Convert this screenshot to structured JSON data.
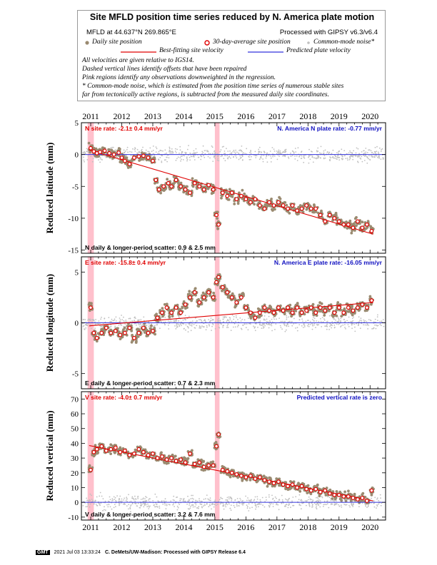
{
  "legend": {
    "title": "Site MFLD position time series reduced by N. America plate motion",
    "site_coords": "MFLD at 44.637°N 269.865°E",
    "processed": "Processed with GIPSY v6.3/v6.4",
    "daily": "Daily site position",
    "avg30": "30-day-average site position",
    "cmn": "Common-mode noise*",
    "best_fit": "Best-fitting site velocity",
    "predicted": "Predicted plate velocity",
    "note1": "All velocities are given relative to IGS14.",
    "note2": "Dashed vertical lines identify offsets that have been repaired",
    "note3": "Pink regions identify any observations downweighted in the regression.",
    "note4": "* Common-mode noise, which is estimated from the position time series of numerous stable sites",
    "note5": "far from tectonically active regions, is subtracted from the measured daily site coordinates."
  },
  "colors": {
    "daily": "#9a8a70",
    "cmn": "#c0c0c0",
    "fit": "#e00000",
    "plate": "#3333dd",
    "pink": "#ffc0cc",
    "rate_red": "#e00000",
    "rate_blue": "#1010c0"
  },
  "footer": {
    "logo": "GMT",
    "timestamp": "2021 Jul 03 13:33:24",
    "credit": "C. DeMets/UW-Madison: Processed with GIPSY Release 6.4"
  },
  "chart_data": [
    {
      "type": "scatter",
      "component": "N",
      "ylabel": "Reduced latitude (mm)",
      "ylim": [
        -15.5,
        5
      ],
      "yticks": [
        5,
        0,
        -5,
        -10,
        -15
      ],
      "xlim": [
        2010.7,
        2020.5
      ],
      "xticks": [
        2011,
        2012,
        2013,
        2014,
        2015,
        2016,
        2017,
        2018,
        2019,
        2020
      ],
      "site_rate": "N site rate:  -2.1± 0.4 mm/yr",
      "plate_rate": "N. America N plate rate:  -0.77 mm/yr",
      "scatter_label": "N daily & longer-period scatter:   0.9 &   2.5 mm",
      "pink_regions": [
        [
          2010.9,
          2011.1
        ],
        [
          2015.0,
          2015.15
        ]
      ],
      "fit_line": {
        "x": [
          2010.95,
          2020.1
        ],
        "y": [
          0.7,
          -12.5
        ]
      },
      "plate_line": 0,
      "monthly": [
        {
          "x": 2011.0,
          "y": 1.0
        },
        {
          "x": 2011.1,
          "y": 0.5
        },
        {
          "x": 2011.2,
          "y": 0.2
        },
        {
          "x": 2011.3,
          "y": 0.4
        },
        {
          "x": 2011.45,
          "y": 0.6
        },
        {
          "x": 2011.6,
          "y": 0.2
        },
        {
          "x": 2011.75,
          "y": 0.0
        },
        {
          "x": 2011.9,
          "y": 0.3
        },
        {
          "x": 2012.0,
          "y": -0.5
        },
        {
          "x": 2012.1,
          "y": -1.0
        },
        {
          "x": 2012.25,
          "y": -1.5
        },
        {
          "x": 2012.4,
          "y": -0.5
        },
        {
          "x": 2012.55,
          "y": -0.3
        },
        {
          "x": 2012.7,
          "y": -0.2
        },
        {
          "x": 2012.85,
          "y": -0.5
        },
        {
          "x": 2013.0,
          "y": -1.0
        },
        {
          "x": 2013.1,
          "y": -4.0
        },
        {
          "x": 2013.2,
          "y": -5.5
        },
        {
          "x": 2013.35,
          "y": -5.0
        },
        {
          "x": 2013.5,
          "y": -4.5
        },
        {
          "x": 2013.6,
          "y": -5.0
        },
        {
          "x": 2013.75,
          "y": -4.0
        },
        {
          "x": 2013.9,
          "y": -5.0
        },
        {
          "x": 2014.05,
          "y": -5.5
        },
        {
          "x": 2014.2,
          "y": -6.0
        },
        {
          "x": 2014.35,
          "y": -4.5
        },
        {
          "x": 2014.5,
          "y": -5.0
        },
        {
          "x": 2014.65,
          "y": -5.5
        },
        {
          "x": 2014.8,
          "y": -4.8
        },
        {
          "x": 2014.95,
          "y": -5.5
        },
        {
          "x": 2015.05,
          "y": -9.5
        },
        {
          "x": 2015.12,
          "y": -11.0
        },
        {
          "x": 2015.25,
          "y": -6.0
        },
        {
          "x": 2015.4,
          "y": -6.5
        },
        {
          "x": 2015.55,
          "y": -6.0
        },
        {
          "x": 2015.7,
          "y": -7.0
        },
        {
          "x": 2015.85,
          "y": -6.5
        },
        {
          "x": 2016.0,
          "y": -7.0
        },
        {
          "x": 2016.15,
          "y": -7.5
        },
        {
          "x": 2016.3,
          "y": -7.0
        },
        {
          "x": 2016.45,
          "y": -8.0
        },
        {
          "x": 2016.6,
          "y": -8.5
        },
        {
          "x": 2016.75,
          "y": -7.5
        },
        {
          "x": 2016.9,
          "y": -8.0
        },
        {
          "x": 2017.05,
          "y": -7.5
        },
        {
          "x": 2017.2,
          "y": -8.0
        },
        {
          "x": 2017.35,
          "y": -8.5
        },
        {
          "x": 2017.5,
          "y": -8.0
        },
        {
          "x": 2017.65,
          "y": -8.8
        },
        {
          "x": 2017.8,
          "y": -8.5
        },
        {
          "x": 2017.95,
          "y": -8.0
        },
        {
          "x": 2018.1,
          "y": -8.5
        },
        {
          "x": 2018.25,
          "y": -8.5
        },
        {
          "x": 2018.4,
          "y": -9.5
        },
        {
          "x": 2018.55,
          "y": -10.5
        },
        {
          "x": 2018.7,
          "y": -9.5
        },
        {
          "x": 2018.85,
          "y": -10.0
        },
        {
          "x": 2019.0,
          "y": -10.5
        },
        {
          "x": 2019.15,
          "y": -11.0
        },
        {
          "x": 2019.3,
          "y": -11.0
        },
        {
          "x": 2019.45,
          "y": -11.5
        },
        {
          "x": 2019.6,
          "y": -10.5
        },
        {
          "x": 2019.75,
          "y": -11.5
        },
        {
          "x": 2019.9,
          "y": -11.0
        },
        {
          "x": 2020.05,
          "y": -12.0
        }
      ]
    },
    {
      "type": "scatter",
      "component": "E",
      "ylabel": "Reduced longitude (mm)",
      "ylim": [
        -6.5,
        6.5
      ],
      "yticks": [
        5,
        0,
        -5
      ],
      "xlim": [
        2010.7,
        2020.5
      ],
      "xticks": [
        2011,
        2012,
        2013,
        2014,
        2015,
        2016,
        2017,
        2018,
        2019,
        2020
      ],
      "site_rate": "E site rate:  -15.8± 0.4 mm/yr",
      "plate_rate": "N. America E plate rate:  -16.05 mm/yr",
      "scatter_label": "E daily & longer-period scatter:   0.7 &   2.3 mm",
      "pink_regions": [
        [
          2010.9,
          2011.1
        ],
        [
          2015.0,
          2015.15
        ]
      ],
      "fit_line": {
        "x": [
          2010.95,
          2020.1
        ],
        "y": [
          -0.3,
          2.0
        ]
      },
      "plate_line": 0,
      "monthly": [
        {
          "x": 2011.0,
          "y": 1.5
        },
        {
          "x": 2011.1,
          "y": -1.0
        },
        {
          "x": 2011.2,
          "y": -1.5
        },
        {
          "x": 2011.35,
          "y": -1.0
        },
        {
          "x": 2011.5,
          "y": -0.5
        },
        {
          "x": 2011.65,
          "y": -1.0
        },
        {
          "x": 2011.8,
          "y": -0.8
        },
        {
          "x": 2011.95,
          "y": -1.2
        },
        {
          "x": 2012.1,
          "y": -1.0
        },
        {
          "x": 2012.25,
          "y": -0.5
        },
        {
          "x": 2012.4,
          "y": -1.5
        },
        {
          "x": 2012.55,
          "y": -1.0
        },
        {
          "x": 2012.7,
          "y": -0.5
        },
        {
          "x": 2012.85,
          "y": -1.0
        },
        {
          "x": 2013.0,
          "y": -0.8
        },
        {
          "x": 2013.15,
          "y": 0.5
        },
        {
          "x": 2013.3,
          "y": 1.0
        },
        {
          "x": 2013.45,
          "y": 1.5
        },
        {
          "x": 2013.6,
          "y": 1.0
        },
        {
          "x": 2013.75,
          "y": 1.5
        },
        {
          "x": 2013.9,
          "y": 1.0
        },
        {
          "x": 2014.05,
          "y": 1.8
        },
        {
          "x": 2014.2,
          "y": 2.5
        },
        {
          "x": 2014.35,
          "y": 3.0
        },
        {
          "x": 2014.5,
          "y": 2.0
        },
        {
          "x": 2014.65,
          "y": 2.5
        },
        {
          "x": 2014.8,
          "y": 3.0
        },
        {
          "x": 2014.95,
          "y": 2.5
        },
        {
          "x": 2015.05,
          "y": 4.0
        },
        {
          "x": 2015.12,
          "y": 4.5
        },
        {
          "x": 2015.25,
          "y": 3.5
        },
        {
          "x": 2015.4,
          "y": 3.0
        },
        {
          "x": 2015.55,
          "y": 2.5
        },
        {
          "x": 2015.7,
          "y": 2.0
        },
        {
          "x": 2015.85,
          "y": 2.5
        },
        {
          "x": 2016.0,
          "y": 1.5
        },
        {
          "x": 2016.15,
          "y": 1.0
        },
        {
          "x": 2016.3,
          "y": 0.5
        },
        {
          "x": 2016.45,
          "y": 1.0
        },
        {
          "x": 2016.6,
          "y": 1.5
        },
        {
          "x": 2016.75,
          "y": 1.2
        },
        {
          "x": 2016.9,
          "y": 1.0
        },
        {
          "x": 2017.05,
          "y": 1.5
        },
        {
          "x": 2017.2,
          "y": 1.2
        },
        {
          "x": 2017.35,
          "y": 1.5
        },
        {
          "x": 2017.5,
          "y": 1.0
        },
        {
          "x": 2017.65,
          "y": 1.5
        },
        {
          "x": 2017.8,
          "y": 1.0
        },
        {
          "x": 2017.95,
          "y": 1.2
        },
        {
          "x": 2018.1,
          "y": 1.5
        },
        {
          "x": 2018.25,
          "y": 1.0
        },
        {
          "x": 2018.4,
          "y": 1.5
        },
        {
          "x": 2018.55,
          "y": 1.2
        },
        {
          "x": 2018.7,
          "y": 1.5
        },
        {
          "x": 2018.85,
          "y": 1.0
        },
        {
          "x": 2019.0,
          "y": 1.5
        },
        {
          "x": 2019.15,
          "y": 1.0
        },
        {
          "x": 2019.3,
          "y": 1.5
        },
        {
          "x": 2019.45,
          "y": 1.2
        },
        {
          "x": 2019.6,
          "y": 1.5
        },
        {
          "x": 2019.75,
          "y": 1.8
        },
        {
          "x": 2019.9,
          "y": 1.5
        },
        {
          "x": 2020.05,
          "y": 2.2
        }
      ]
    },
    {
      "type": "scatter",
      "component": "V",
      "ylabel": "Reduced vertical (mm)",
      "ylim": [
        -12,
        75
      ],
      "yticks": [
        70,
        60,
        50,
        40,
        30,
        20,
        10,
        0,
        -10
      ],
      "xlim": [
        2010.7,
        2020.5
      ],
      "xticks": [
        2011,
        2012,
        2013,
        2014,
        2015,
        2016,
        2017,
        2018,
        2019,
        2020
      ],
      "site_rate": "V site rate:  -4.0± 0.7 mm/yr",
      "plate_rate": "Predicted vertical rate is zero",
      "scatter_label": "V daily & longer-period scatter:   3.2 &   7.6 mm",
      "pink_regions": [
        [
          2010.9,
          2011.1
        ],
        [
          2015.0,
          2015.15
        ]
      ],
      "fit_line": {
        "x": [
          2010.95,
          2020.1
        ],
        "y": [
          38.5,
          1.0
        ]
      },
      "plate_line": 0,
      "monthly": [
        {
          "x": 2011.0,
          "y": 22
        },
        {
          "x": 2011.1,
          "y": 34
        },
        {
          "x": 2011.2,
          "y": 36
        },
        {
          "x": 2011.35,
          "y": 38
        },
        {
          "x": 2011.5,
          "y": 35
        },
        {
          "x": 2011.65,
          "y": 36
        },
        {
          "x": 2011.8,
          "y": 37
        },
        {
          "x": 2011.95,
          "y": 34
        },
        {
          "x": 2012.1,
          "y": 35
        },
        {
          "x": 2012.25,
          "y": 32
        },
        {
          "x": 2012.4,
          "y": 33
        },
        {
          "x": 2012.55,
          "y": 36
        },
        {
          "x": 2012.7,
          "y": 34
        },
        {
          "x": 2012.85,
          "y": 32
        },
        {
          "x": 2013.0,
          "y": 33
        },
        {
          "x": 2013.15,
          "y": 30
        },
        {
          "x": 2013.3,
          "y": 31
        },
        {
          "x": 2013.45,
          "y": 29
        },
        {
          "x": 2013.6,
          "y": 30
        },
        {
          "x": 2013.75,
          "y": 28
        },
        {
          "x": 2013.9,
          "y": 29
        },
        {
          "x": 2014.05,
          "y": 27
        },
        {
          "x": 2014.2,
          "y": 33
        },
        {
          "x": 2014.35,
          "y": 26
        },
        {
          "x": 2014.5,
          "y": 27
        },
        {
          "x": 2014.65,
          "y": 24
        },
        {
          "x": 2014.8,
          "y": 25
        },
        {
          "x": 2014.95,
          "y": 25
        },
        {
          "x": 2015.05,
          "y": 38
        },
        {
          "x": 2015.12,
          "y": 46
        },
        {
          "x": 2015.25,
          "y": 22
        },
        {
          "x": 2015.4,
          "y": 21
        },
        {
          "x": 2015.55,
          "y": 20
        },
        {
          "x": 2015.7,
          "y": 19
        },
        {
          "x": 2015.85,
          "y": 18
        },
        {
          "x": 2016.0,
          "y": 17
        },
        {
          "x": 2016.15,
          "y": 18
        },
        {
          "x": 2016.3,
          "y": 16
        },
        {
          "x": 2016.45,
          "y": 17
        },
        {
          "x": 2016.6,
          "y": 15
        },
        {
          "x": 2016.75,
          "y": 14
        },
        {
          "x": 2016.9,
          "y": 13
        },
        {
          "x": 2017.05,
          "y": 14
        },
        {
          "x": 2017.2,
          "y": 12
        },
        {
          "x": 2017.35,
          "y": 11
        },
        {
          "x": 2017.5,
          "y": 12
        },
        {
          "x": 2017.65,
          "y": 10
        },
        {
          "x": 2017.8,
          "y": 11
        },
        {
          "x": 2017.95,
          "y": 9
        },
        {
          "x": 2018.1,
          "y": 8
        },
        {
          "x": 2018.25,
          "y": 9
        },
        {
          "x": 2018.4,
          "y": 7
        },
        {
          "x": 2018.55,
          "y": 8
        },
        {
          "x": 2018.7,
          "y": 6
        },
        {
          "x": 2018.85,
          "y": 5
        },
        {
          "x": 2019.0,
          "y": 5
        },
        {
          "x": 2019.15,
          "y": 4
        },
        {
          "x": 2019.3,
          "y": 4
        },
        {
          "x": 2019.45,
          "y": 3
        },
        {
          "x": 2019.6,
          "y": 2
        },
        {
          "x": 2019.75,
          "y": 3
        },
        {
          "x": 2019.9,
          "y": 1
        },
        {
          "x": 2020.05,
          "y": 8
        }
      ]
    }
  ]
}
